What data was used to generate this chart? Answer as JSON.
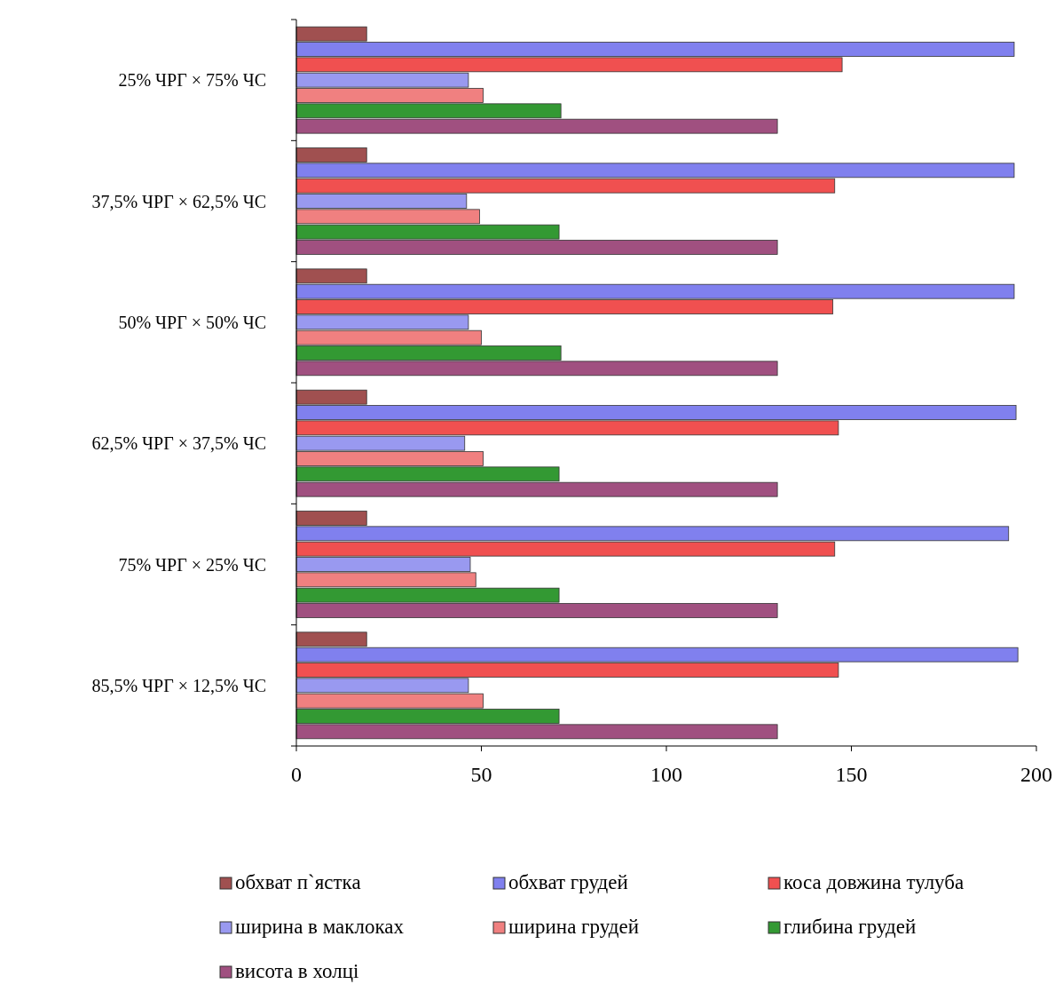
{
  "chart_data": {
    "type": "bar",
    "orientation": "horizontal",
    "categories": [
      "25% ЧРГ × 75% ЧС",
      "37,5% ЧРГ × 62,5% ЧС",
      "50% ЧРГ × 50% ЧС",
      "62,5% ЧРГ × 37,5% ЧС",
      "75% ЧРГ × 25% ЧС",
      "85,5% ЧРГ × 12,5% ЧС"
    ],
    "series": [
      {
        "name": "обхват п`ястка",
        "color": "#a05050",
        "values": [
          19,
          19,
          19,
          19,
          19,
          19
        ]
      },
      {
        "name": "обхват грудей",
        "color": "#8080ee",
        "values": [
          194,
          194,
          194,
          194.5,
          192.5,
          195
        ]
      },
      {
        "name": "коса довжина тулуба",
        "color": "#f05050",
        "values": [
          147.5,
          145.5,
          145,
          146.5,
          145.5,
          146.5
        ]
      },
      {
        "name": "ширина в маклоках",
        "color": "#9999f0",
        "values": [
          46.5,
          46,
          46.5,
          45.5,
          47,
          46.5
        ]
      },
      {
        "name": "ширина грудей",
        "color": "#f08080",
        "values": [
          50.5,
          49.5,
          50,
          50.5,
          48.5,
          50.5
        ]
      },
      {
        "name": "глибина грудей",
        "color": "#339933",
        "values": [
          71.5,
          71,
          71.5,
          71,
          71,
          71
        ]
      },
      {
        "name": "висота в холці",
        "color": "#a05080",
        "values": [
          130,
          130,
          130,
          130,
          130,
          130
        ]
      }
    ],
    "xlim": [
      0,
      200
    ],
    "xticks": [
      0,
      50,
      100,
      150,
      200
    ],
    "grid": false,
    "legend": "bottom"
  }
}
